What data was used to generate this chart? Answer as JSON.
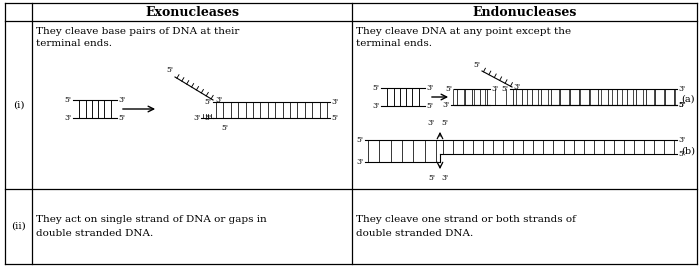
{
  "col1_header": "Exonucleases",
  "col2_header": "Endonucleases",
  "row1_col1_line1": "They cleave base pairs of DNA at their",
  "row1_col1_line2": "terminal ends.",
  "row1_col2_line1": "They cleave DNA at any point except the",
  "row1_col2_line2": "terminal ends.",
  "row2_col1_line1": "They act on single strand of DNA or gaps in",
  "row2_col1_line2": "double stranded DNA.",
  "row2_col2_line1": "They cleave one strand or both strands of",
  "row2_col2_line2": "double stranded DNA.",
  "label_a": "(a)",
  "label_b": "(b)",
  "label_i": "(i)",
  "label_ii": "(ii)",
  "bg_color": "#ffffff",
  "text_color": "#000000"
}
